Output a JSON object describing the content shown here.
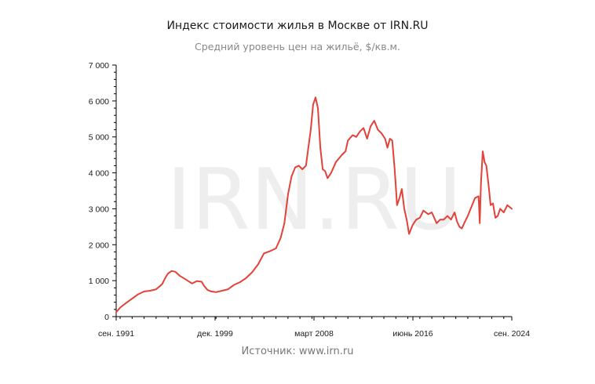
{
  "chart_data": {
    "type": "line",
    "title": "Индекс стоимости жилья в Москве от IRN.RU",
    "subtitle": "Средний уровень цен на жильё, $/кв.м.",
    "source": "Источник: www.irn.ru",
    "watermark": "IRN.RU",
    "ylim": [
      0,
      7000
    ],
    "y_ticks": [
      0,
      1000,
      2000,
      3000,
      4000,
      5000,
      6000,
      7000
    ],
    "y_tick_labels": [
      "0",
      "1 000",
      "2 000",
      "3 000",
      "4 000",
      "5 000",
      "6 000",
      "7 000"
    ],
    "xlim": [
      1991.67,
      2024.67
    ],
    "x_ticks": [
      1991.67,
      1999.92,
      2008.17,
      2016.42,
      2024.67
    ],
    "x_tick_labels": [
      "сен. 1991",
      "дек. 1999",
      "март 2008",
      "июнь 2016",
      "сен. 2024"
    ],
    "grid": false,
    "line_color": "#e3423a",
    "series": [
      {
        "x": [
          1991.67,
          1992.0,
          1992.5,
          1993.0,
          1993.5,
          1994.0,
          1994.5,
          1995.0,
          1995.5,
          1995.8,
          1996.0,
          1996.3,
          1996.6,
          1997.0,
          1997.5,
          1998.0,
          1998.4,
          1998.8,
          1999.0,
          1999.3,
          1999.6,
          2000.0,
          2000.5,
          2001.0,
          2001.5,
          2002.0,
          2002.5,
          2003.0,
          2003.5,
          2004.0,
          2004.5,
          2005.0,
          2005.4,
          2005.7,
          2006.0,
          2006.3,
          2006.6,
          2006.9,
          2007.2,
          2007.5,
          2007.7,
          2007.9,
          2008.1,
          2008.3,
          2008.5,
          2008.7,
          2008.9,
          2009.1,
          2009.3,
          2009.6,
          2010.0,
          2010.5,
          2010.8,
          2011.0,
          2011.4,
          2011.7,
          2012.0,
          2012.3,
          2012.6,
          2012.9,
          2013.2,
          2013.5,
          2013.8,
          2014.1,
          2014.3,
          2014.5,
          2014.7,
          2014.9,
          2015.1,
          2015.3,
          2015.5,
          2015.7,
          2015.9,
          2016.1,
          2016.4,
          2016.7,
          2017.0,
          2017.3,
          2017.7,
          2018.0,
          2018.4,
          2018.7,
          2019.0,
          2019.3,
          2019.6,
          2019.9,
          2020.1,
          2020.3,
          2020.5,
          2020.7,
          2021.0,
          2021.3,
          2021.6,
          2021.9,
          2022.0,
          2022.1,
          2022.25,
          2022.4,
          2022.55,
          2022.75,
          2022.9,
          2023.1,
          2023.3,
          2023.5,
          2023.7,
          2024.0,
          2024.3,
          2024.67
        ],
        "y": [
          120,
          250,
          380,
          500,
          620,
          700,
          720,
          760,
          900,
          1100,
          1200,
          1270,
          1250,
          1130,
          1030,
          920,
          990,
          970,
          860,
          740,
          700,
          680,
          720,
          760,
          880,
          960,
          1070,
          1230,
          1450,
          1760,
          1820,
          1900,
          2200,
          2600,
          3400,
          3900,
          4150,
          4200,
          4100,
          4200,
          4700,
          5200,
          5900,
          6100,
          5800,
          4700,
          4100,
          4050,
          3850,
          4000,
          4300,
          4500,
          4600,
          4900,
          5050,
          5000,
          5150,
          5250,
          4950,
          5300,
          5450,
          5200,
          5100,
          4950,
          4700,
          4950,
          4900,
          4100,
          3100,
          3300,
          3550,
          3000,
          2700,
          2300,
          2550,
          2700,
          2750,
          2950,
          2850,
          2900,
          2600,
          2700,
          2700,
          2800,
          2700,
          2900,
          2650,
          2500,
          2450,
          2600,
          2800,
          3050,
          3300,
          3350,
          2600,
          3700,
          4600,
          4300,
          4200,
          3600,
          3100,
          3150,
          2750,
          2800,
          3000,
          2900,
          3100,
          3000
        ]
      }
    ]
  }
}
